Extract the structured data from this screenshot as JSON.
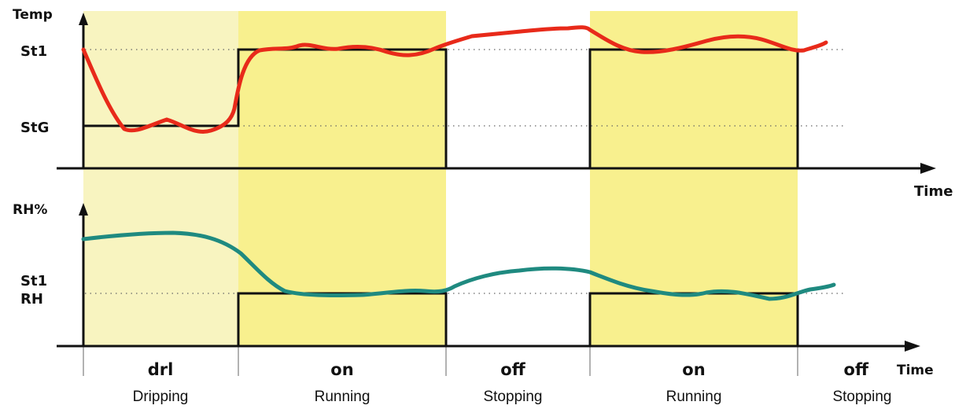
{
  "colors": {
    "dripping_bg": "#f8f4c0",
    "running_bg": "#f8f08e",
    "temp_curve": "#e82a1a",
    "rh_curve": "#1f8a80",
    "axis": "#111111",
    "guide": "#666666"
  },
  "top_chart": {
    "y_label": "Temp",
    "x_label": "Time",
    "level_high": "St1",
    "level_low": "StG"
  },
  "bottom_chart": {
    "y_label": "RH%",
    "x_label": "Time",
    "level_line1": "St1",
    "level_line2": "RH"
  },
  "phases": [
    {
      "state": "drl",
      "name": "Dripping",
      "shade": "dripping"
    },
    {
      "state": "on",
      "name": "Running",
      "shade": "running"
    },
    {
      "state": "off",
      "name": "Stopping",
      "shade": "none"
    },
    {
      "state": "on",
      "name": "Running",
      "shade": "running"
    },
    {
      "state": "off",
      "name": "Stopping",
      "shade": "none"
    }
  ]
}
